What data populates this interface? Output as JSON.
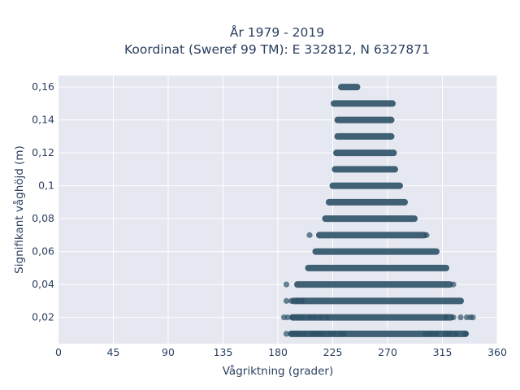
{
  "chart_data": {
    "type": "scatter",
    "title_line1": "År 1979 - 2019",
    "title_line2": "Koordinat (Sweref 99 TM): E 332812, N 6327871",
    "xlabel": "Vågriktning (grader)",
    "ylabel": "Signifikant våghöjd (m)",
    "xlim": [
      0,
      360
    ],
    "ylim": [
      0.004,
      0.167
    ],
    "xticks": [
      0,
      45,
      90,
      135,
      180,
      225,
      270,
      315,
      360
    ],
    "xtick_labels": [
      "0",
      "45",
      "90",
      "135",
      "180",
      "225",
      "270",
      "315",
      "360"
    ],
    "yticks": [
      0.02,
      0.04,
      0.06,
      0.08,
      0.1,
      0.12,
      0.14,
      0.16
    ],
    "ytick_labels": [
      "0,02",
      "0,04",
      "0,06",
      "0,08",
      "0,1",
      "0,12",
      "0,14",
      "0,16"
    ],
    "grid": true,
    "marker_color": "#2d5167",
    "plot_bg": "#e5e8f0",
    "bands": [
      {
        "y": 0.01,
        "x_min": 191,
        "x_max": 334,
        "scatter": [
          187,
          191,
          194,
          196,
          198,
          202,
          207,
          210,
          212,
          214,
          217,
          222,
          226,
          231,
          234,
          301,
          304,
          306,
          310,
          318,
          321,
          326,
          334
        ]
      },
      {
        "y": 0.02,
        "x_min": 192,
        "x_max": 322,
        "scatter": [
          185,
          188,
          192,
          196,
          200,
          206,
          210,
          215,
          220,
          318,
          324,
          330,
          335,
          338,
          340
        ]
      },
      {
        "y": 0.03,
        "x_min": 193,
        "x_max": 330,
        "scatter": [
          187,
          191,
          196,
          200
        ]
      },
      {
        "y": 0.04,
        "x_min": 196,
        "x_max": 321,
        "scatter": [
          187,
          324
        ]
      },
      {
        "y": 0.05,
        "x_min": 205,
        "x_max": 318,
        "scatter": []
      },
      {
        "y": 0.06,
        "x_min": 211,
        "x_max": 310,
        "scatter": []
      },
      {
        "y": 0.07,
        "x_min": 214,
        "x_max": 300,
        "scatter": [
          206,
          302
        ]
      },
      {
        "y": 0.08,
        "x_min": 219,
        "x_max": 292,
        "scatter": []
      },
      {
        "y": 0.09,
        "x_min": 222,
        "x_max": 284,
        "scatter": []
      },
      {
        "y": 0.1,
        "x_min": 225,
        "x_max": 280,
        "scatter": []
      },
      {
        "y": 0.11,
        "x_min": 227,
        "x_max": 276,
        "scatter": []
      },
      {
        "y": 0.12,
        "x_min": 228,
        "x_max": 275,
        "scatter": []
      },
      {
        "y": 0.13,
        "x_min": 229,
        "x_max": 273,
        "scatter": []
      },
      {
        "y": 0.14,
        "x_min": 229,
        "x_max": 273,
        "scatter": []
      },
      {
        "y": 0.15,
        "x_min": 226,
        "x_max": 274,
        "scatter": []
      },
      {
        "y": 0.16,
        "x_min": 232,
        "x_max": 245,
        "scatter": []
      }
    ]
  }
}
